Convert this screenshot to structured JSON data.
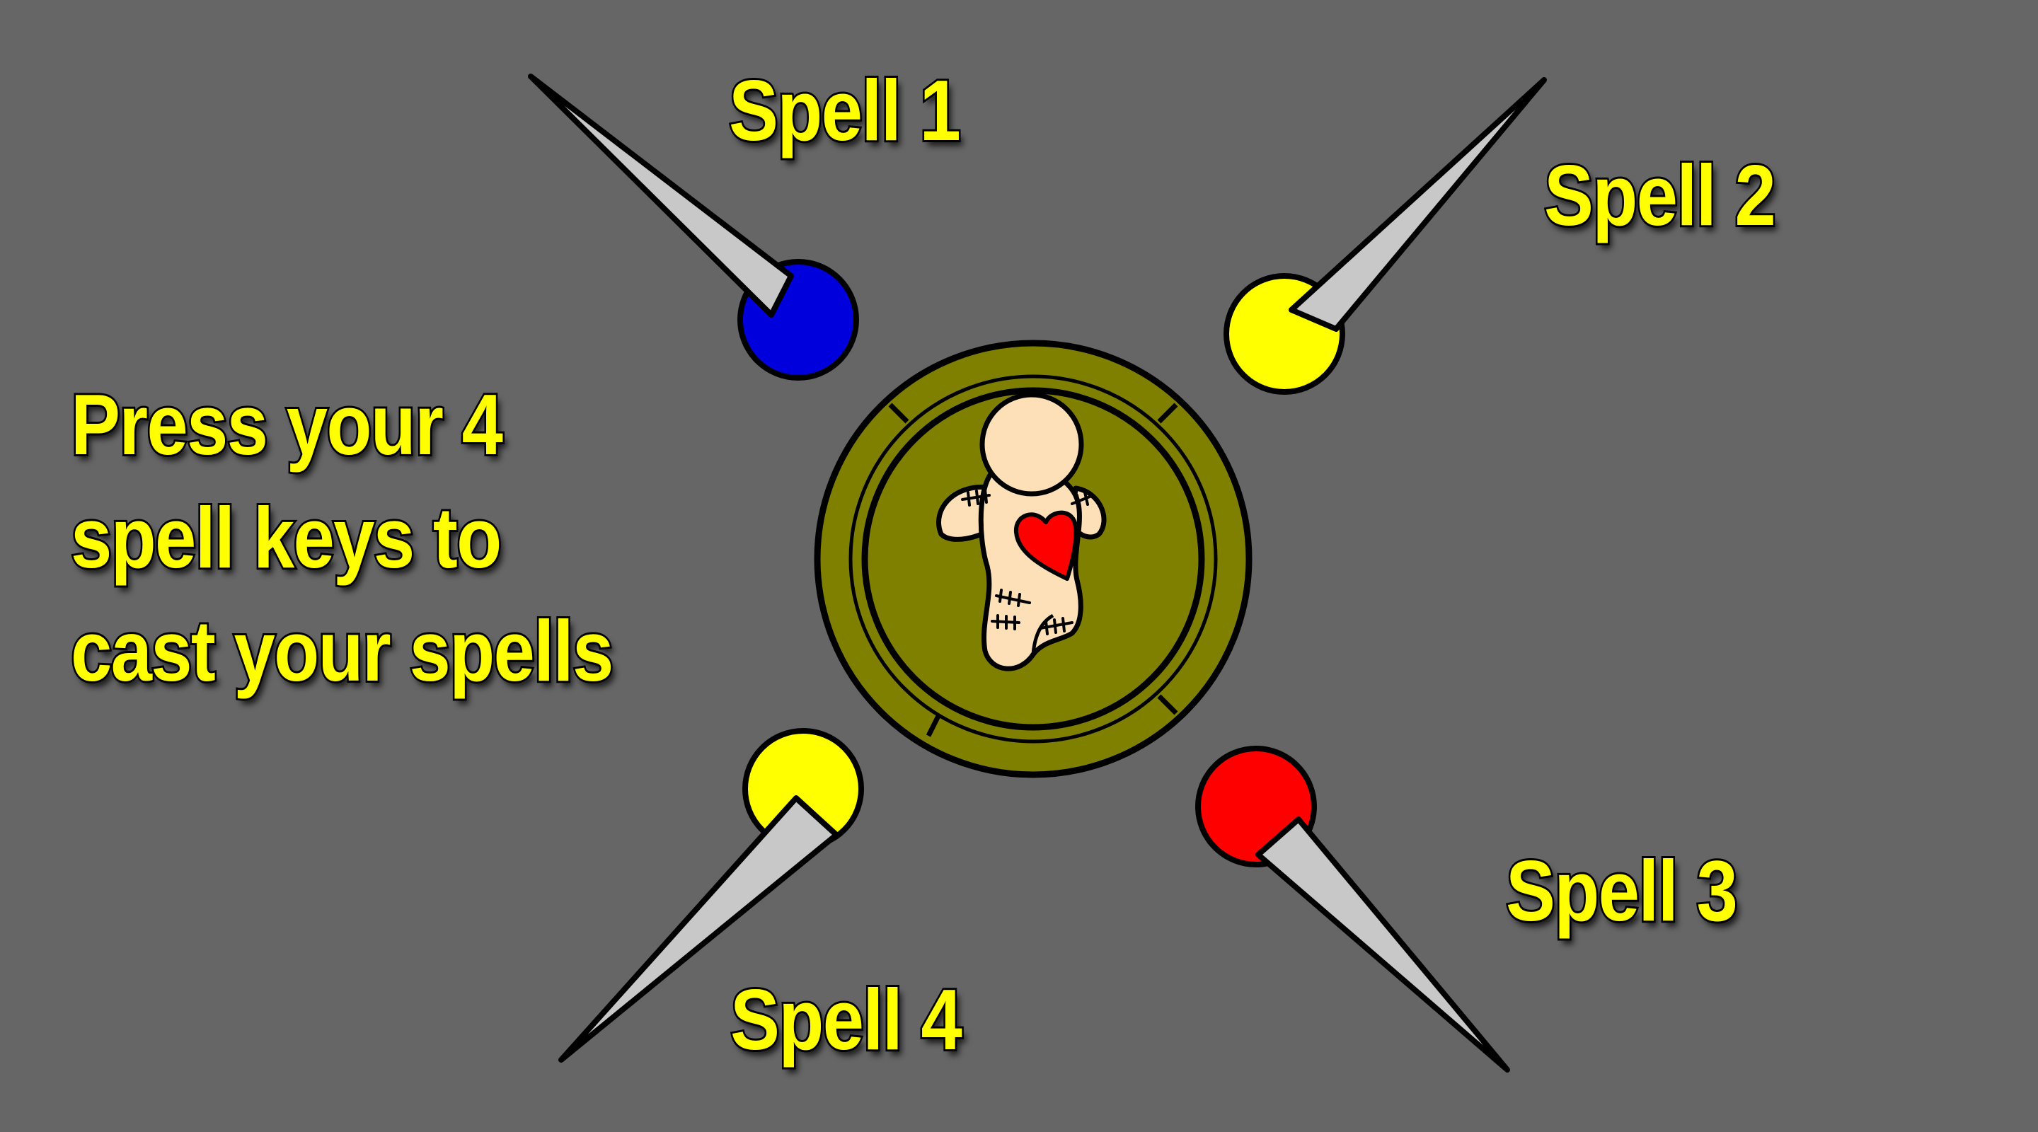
{
  "instructions": {
    "lines": [
      "Press your 4",
      "spell keys to",
      "cast your spells"
    ]
  },
  "spells": [
    {
      "label": "Spell 1",
      "pin_color": "#0000dd"
    },
    {
      "label": "Spell 2",
      "pin_color": "#ffff00"
    },
    {
      "label": "Spell 3",
      "pin_color": "#ff0000"
    },
    {
      "label": "Spell 4",
      "pin_color": "#ffff00"
    }
  ],
  "colors": {
    "background": "#666666",
    "text": "#ffff00",
    "text_outline": "#000000",
    "platform": "#808000",
    "doll_skin": "#fde0b8",
    "heart": "#ff0000",
    "needle": "#c8c8c8"
  },
  "icons": {
    "center": "voodoo-doll-icon",
    "heart": "heart-icon",
    "pins": "pin-icon"
  }
}
